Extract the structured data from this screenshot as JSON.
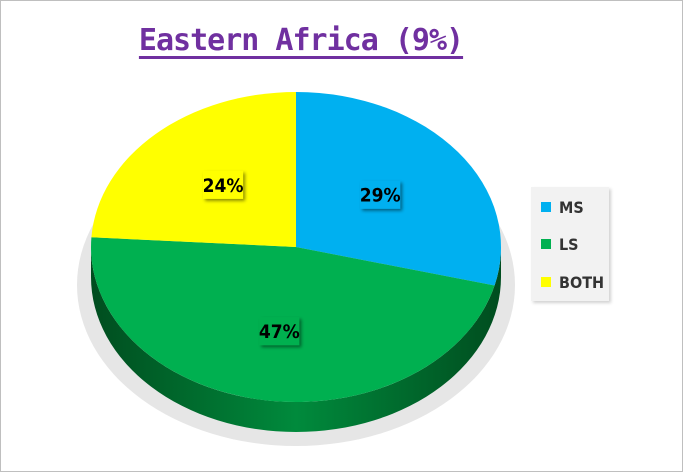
{
  "chart_data": {
    "type": "pie",
    "title": "Eastern Africa (9%)",
    "slices": [
      {
        "name": "MS",
        "value": 29,
        "label": "29%",
        "color": "#00b0f0"
      },
      {
        "name": "LS",
        "value": 47,
        "label": "47%",
        "color": "#00b050"
      },
      {
        "name": "BOTH",
        "value": 24,
        "label": "24%",
        "color": "#ffff00"
      }
    ],
    "legend": {
      "position": "right",
      "items": [
        "MS",
        "LS",
        "BOTH"
      ]
    },
    "style": "3d"
  }
}
